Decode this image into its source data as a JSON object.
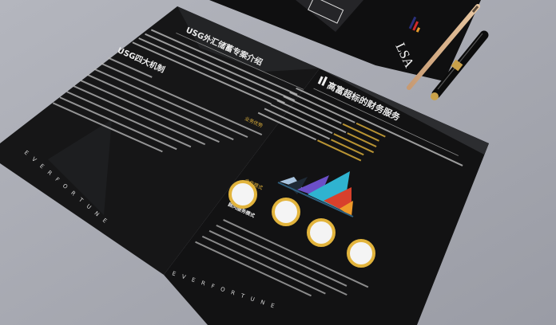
{
  "colors": {
    "background": "#a9abb3",
    "paper": "#151516",
    "gold": "#e2b43c",
    "triangle_light": "#a9c4df",
    "triangle_purple": "#6b4fc7",
    "triangle_cyan": "#2fb3d0",
    "triangle_red": "#d8402c",
    "triangle_orange": "#ef9a2a",
    "triangle_navy": "#1f3b6b"
  },
  "left_page": {
    "title": "USG外汇储蓄专案介绍",
    "subtitle": "USG四大机制",
    "footer": "E V E R   F O R T U N E"
  },
  "right_page": {
    "title": "高富超标的财务服务",
    "section_a": "业务优势",
    "section_b": "合作模式",
    "section_c": "顾问服务模式",
    "footer": "E V E R   F O R T U N E"
  },
  "cover": {
    "logo_text": "LSA"
  }
}
